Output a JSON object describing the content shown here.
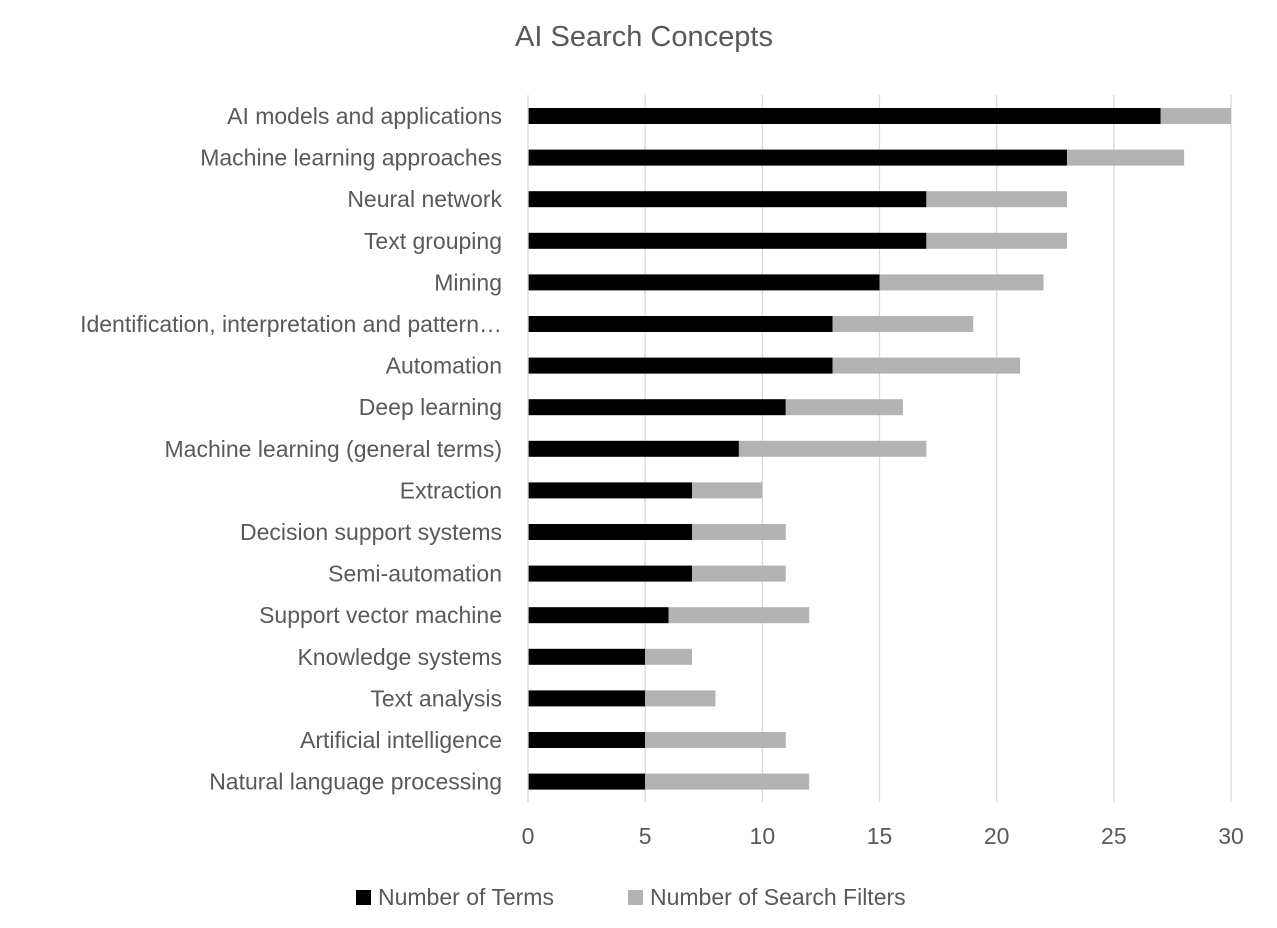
{
  "chart_data": {
    "type": "bar",
    "orientation": "horizontal",
    "stacked": true,
    "title": "AI Search Concepts",
    "categories": [
      "AI models and applications",
      "Machine learning approaches",
      "Neural network",
      "Text grouping",
      "Mining",
      "Identification, interpretation and pattern…",
      "Automation",
      "Deep learning",
      "Machine learning (general terms)",
      "Extraction",
      "Decision support systems",
      "Semi-automation",
      "Support vector machine",
      "Knowledge systems",
      "Text analysis",
      "Artificial intelligence",
      "Natural language processing"
    ],
    "series": [
      {
        "name": "Number of Terms",
        "color": "#000000",
        "values": [
          27,
          23,
          17,
          17,
          15,
          13,
          13,
          11,
          9,
          7,
          7,
          7,
          6,
          5,
          5,
          5,
          5
        ]
      },
      {
        "name": "Number of Search Filters",
        "color": "#b3b3b3",
        "values": [
          3,
          5,
          6,
          6,
          7,
          6,
          8,
          5,
          8,
          3,
          4,
          4,
          6,
          2,
          3,
          6,
          7
        ]
      }
    ],
    "xlim": [
      0,
      30
    ],
    "xticks": [
      0,
      5,
      10,
      15,
      20,
      25,
      30
    ],
    "xlabel": "",
    "ylabel": "",
    "grid": true,
    "legend_position": "bottom",
    "gridline_color": "#d9d9d9",
    "text_color": "#595959"
  }
}
